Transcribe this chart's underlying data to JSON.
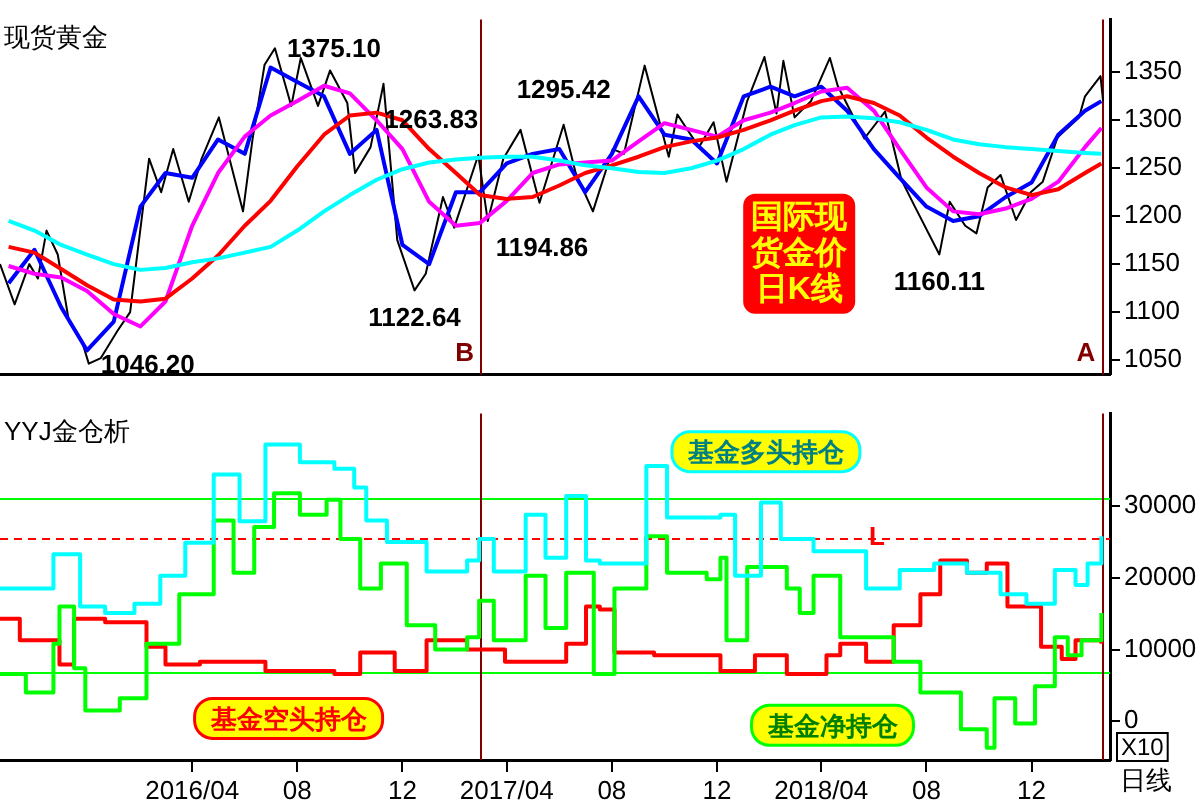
{
  "chart_data": [
    {
      "type": "line",
      "title": "现货黄金",
      "xlim": [
        "2015-08-22",
        "2019-03-02"
      ],
      "ylim": [
        1035,
        1405
      ],
      "yticks": [
        1050,
        1100,
        1150,
        1200,
        1250,
        1300,
        1350
      ],
      "tick_labels": "y",
      "marker": "none",
      "x": [
        "2015-09",
        "2015-10",
        "2015-11",
        "2015-12",
        "2016-01",
        "2016-02",
        "2016-03",
        "2016-04",
        "2016-05",
        "2016-06",
        "2016-07",
        "2016-08",
        "2016-09",
        "2016-10",
        "2016-11",
        "2016-12",
        "2017-01",
        "2017-02",
        "2017-03",
        "2017-04",
        "2017-05",
        "2017-06",
        "2017-07",
        "2017-08",
        "2017-09",
        "2017-10",
        "2017-11",
        "2017-12",
        "2018-01",
        "2018-02",
        "2018-03",
        "2018-04",
        "2018-05",
        "2018-06",
        "2018-07",
        "2018-08",
        "2018-09",
        "2018-10",
        "2018-11",
        "2018-12",
        "2019-01",
        "2019-02",
        "2019-02-20"
      ],
      "series": [
        {
          "color": "#00ffff",
          "values": [
            1195,
            1185,
            1170,
            1160,
            1150,
            1144,
            1146,
            1152,
            1156,
            1162,
            1168,
            1185,
            1205,
            1222,
            1238,
            1249,
            1256,
            1259,
            1261,
            1262,
            1262,
            1258,
            1253,
            1250,
            1246,
            1245,
            1250,
            1258,
            1270,
            1285,
            1295,
            1303,
            1304,
            1302,
            1298,
            1290,
            1280,
            1275,
            1272,
            1270,
            1268,
            1266,
            1265
          ]
        },
        {
          "color": "#ff0000",
          "values": [
            1168,
            1162,
            1145,
            1128,
            1113,
            1111,
            1114,
            1135,
            1159,
            1190,
            1216,
            1252,
            1285,
            1305,
            1308,
            1300,
            1270,
            1245,
            1222,
            1218,
            1220,
            1232,
            1245,
            1253,
            1262,
            1272,
            1278,
            1282,
            1290,
            1300,
            1310,
            1320,
            1325,
            1318,
            1305,
            1282,
            1262,
            1245,
            1230,
            1222,
            1228,
            1245,
            1255
          ]
        },
        {
          "color": "#ff00ff",
          "values": [
            1148,
            1140,
            1136,
            1122,
            1098,
            1085,
            1111,
            1190,
            1245,
            1283,
            1305,
            1320,
            1336,
            1328,
            1300,
            1270,
            1215,
            1190,
            1193,
            1216,
            1245,
            1254,
            1256,
            1258,
            1278,
            1297,
            1290,
            1283,
            1300,
            1308,
            1318,
            1330,
            1334,
            1310,
            1270,
            1230,
            1205,
            1202,
            1208,
            1218,
            1236,
            1272,
            1292
          ]
        },
        {
          "color": "#0000ff",
          "values": [
            1130,
            1165,
            1105,
            1060,
            1090,
            1210,
            1245,
            1240,
            1280,
            1265,
            1355,
            1340,
            1325,
            1265,
            1290,
            1170,
            1150,
            1225,
            1225,
            1255,
            1265,
            1270,
            1225,
            1265,
            1325,
            1285,
            1280,
            1255,
            1325,
            1335,
            1325,
            1335,
            1310,
            1270,
            1240,
            1210,
            1195,
            1200,
            1220,
            1235,
            1285,
            1310,
            1320
          ]
        },
        {
          "color": "#000000",
          "x": [
            "2015-08-22",
            "2015-09-08",
            "2015-09-25",
            "2015-10-05",
            "2015-10-15",
            "2015-10-28",
            "2015-11-10",
            "2015-11-25",
            "2015-12-03",
            "2015-12-17",
            "2016-01-05",
            "2016-01-20",
            "2016-02-11",
            "2016-02-25",
            "2016-03-10",
            "2016-03-28",
            "2016-04-12",
            "2016-05-02",
            "2016-05-30",
            "2016-06-10",
            "2016-06-24",
            "2016-07-06",
            "2016-07-25",
            "2016-08-05",
            "2016-08-25",
            "2016-09-08",
            "2016-09-28",
            "2016-10-07",
            "2016-10-25",
            "2016-11-09",
            "2016-11-25",
            "2016-12-15",
            "2016-12-28",
            "2017-01-17",
            "2017-01-30",
            "2017-02-27",
            "2017-03-10",
            "2017-03-28",
            "2017-04-17",
            "2017-05-09",
            "2017-06-06",
            "2017-06-20",
            "2017-07-10",
            "2017-08-02",
            "2017-08-15",
            "2017-09-08",
            "2017-10-06",
            "2017-10-16",
            "2017-11-10",
            "2017-11-27",
            "2017-12-12",
            "2018-01-05",
            "2018-01-25",
            "2018-02-08",
            "2018-02-16",
            "2018-03-01",
            "2018-03-20",
            "2018-04-11",
            "2018-04-20",
            "2018-05-21",
            "2018-06-14",
            "2018-07-03",
            "2018-07-18",
            "2018-08-16",
            "2018-08-28",
            "2018-09-15",
            "2018-09-28",
            "2018-10-11",
            "2018-10-26",
            "2018-11-13",
            "2018-11-30",
            "2018-12-14",
            "2018-12-31",
            "2019-01-25",
            "2019-02-01",
            "2019-02-19",
            "2019-02-22"
          ],
          "values": [
            1150,
            1108,
            1150,
            1135,
            1185,
            1160,
            1090,
            1070,
            1046.2,
            1052,
            1080,
            1100,
            1260,
            1225,
            1270,
            1215,
            1260,
            1303,
            1205,
            1280,
            1358,
            1375.1,
            1315,
            1365,
            1315,
            1352,
            1318,
            1245,
            1272,
            1338,
            1175,
            1122.64,
            1140,
            1220,
            1188,
            1263.83,
            1194.86,
            1260,
            1290,
            1214,
            1295.42,
            1245,
            1205,
            1270,
            1265,
            1357,
            1262,
            1306,
            1272,
            1298,
            1236,
            1320,
            1366,
            1307,
            1362,
            1303,
            1320,
            1365,
            1336,
            1281,
            1309,
            1238,
            1211,
            1160.11,
            1215,
            1190,
            1182,
            1230,
            1243,
            1196,
            1225,
            1236,
            1282,
            1303,
            1325,
            1346,
            1320
          ]
        }
      ],
      "ref_lines": [
        {
          "axis": "x",
          "value": "2017-03-01",
          "label": "B",
          "color": "#800000"
        },
        {
          "axis": "x",
          "value": "2019-02-20",
          "label": "A",
          "color": "#800000"
        }
      ],
      "annotations": [
        {
          "text": "1046.20",
          "x": "2015-12-03",
          "y": 1046.2
        },
        {
          "text": "1375.10",
          "x": "2016-07-06",
          "y": 1375.1
        },
        {
          "text": "1122.64",
          "x": "2016-12-15",
          "y": 1122.64
        },
        {
          "text": "1263.83",
          "x": "2017-02-27",
          "y": 1263.83
        },
        {
          "text": "1194.86",
          "x": "2017-03-10",
          "y": 1194.86
        },
        {
          "text": "1295.42",
          "x": "2017-06-06",
          "y": 1295.42
        },
        {
          "text": "1160.11",
          "x": "2018-08-16",
          "y": 1160.11
        },
        "国际现货金价日K线"
      ]
    },
    {
      "type": "step",
      "title": "YYJ金仓析",
      "xlim": [
        "2015-08-22",
        "2019-03-02"
      ],
      "xticks": [
        {
          "value": "2016-04",
          "label": "2016/04"
        },
        {
          "value": "2016-08",
          "label": "08"
        },
        {
          "value": "2016-12",
          "label": "12"
        },
        {
          "value": "2017-04",
          "label": "2017/04"
        },
        {
          "value": "2017-08",
          "label": "08"
        },
        {
          "value": "2017-12",
          "label": "12"
        },
        {
          "value": "2018-04",
          "label": "2018/04"
        },
        {
          "value": "2018-08",
          "label": "08"
        },
        {
          "value": "2018-12",
          "label": "12"
        }
      ],
      "ylim": [
        -5400,
        42900
      ],
      "yticks": [
        0,
        10000,
        20000,
        30000
      ],
      "marker": "none",
      "series": [
        {
          "name": "基金多头持仓",
          "color": "#00ffff",
          "x": [
            "2015-08-22",
            "2015-10-23",
            "2015-11-23",
            "2015-12-22",
            "2016-01-25",
            "2016-02-24",
            "2016-03-24",
            "2016-04-26",
            "2016-05-26",
            "2016-06-25",
            "2016-08-04",
            "2016-09-13",
            "2016-10-06",
            "2016-10-20",
            "2016-11-13",
            "2016-12-29",
            "2017-02-14",
            "2017-02-28",
            "2017-03-17",
            "2017-04-23",
            "2017-05-16",
            "2017-06-09",
            "2017-07-02",
            "2017-07-18",
            "2017-09-10",
            "2017-10-04",
            "2017-12-05",
            "2017-12-22",
            "2018-01-21",
            "2018-02-13",
            "2018-03-23",
            "2018-05-23",
            "2018-07-01",
            "2018-08-10",
            "2018-09-17",
            "2018-10-26",
            "2018-11-25",
            "2018-12-28",
            "2019-01-21",
            "2019-02-04",
            "2019-02-20"
          ],
          "values": [
            18500,
            23300,
            16000,
            15100,
            16400,
            20300,
            24900,
            34400,
            27900,
            38600,
            36100,
            35200,
            32600,
            28000,
            25000,
            20900,
            22400,
            25400,
            20900,
            28800,
            22800,
            31400,
            22400,
            22000,
            35600,
            28400,
            28800,
            20300,
            30500,
            25400,
            23700,
            18500,
            21100,
            22000,
            20700,
            17700,
            16400,
            21100,
            19000,
            22000,
            25800
          ]
        },
        {
          "name": "基金净持仓",
          "color": "#00ff00",
          "x": [
            "2015-08-22",
            "2015-09-21",
            "2015-10-23",
            "2015-10-30",
            "2015-11-16",
            "2015-11-29",
            "2016-01-08",
            "2016-02-08",
            "2016-03-17",
            "2016-04-26",
            "2016-05-19",
            "2016-06-12",
            "2016-07-05",
            "2016-08-04",
            "2016-09-04",
            "2016-09-20",
            "2016-10-13",
            "2016-11-06",
            "2016-12-06",
            "2017-01-08",
            "2017-02-14",
            "2017-02-28",
            "2017-03-17",
            "2017-04-23",
            "2017-05-16",
            "2017-06-09",
            "2017-07-11",
            "2017-08-04",
            "2017-09-10",
            "2017-10-04",
            "2017-11-19",
            "2017-12-05",
            "2017-12-12",
            "2018-01-05",
            "2018-02-20",
            "2018-03-07",
            "2018-03-23",
            "2018-04-23",
            "2018-05-23",
            "2018-06-24",
            "2018-07-25",
            "2018-09-10",
            "2018-10-10",
            "2018-10-19",
            "2018-11-12",
            "2018-12-05",
            "2018-12-28",
            "2019-01-12",
            "2019-01-28",
            "2019-02-20"
          ],
          "values": [
            6600,
            4000,
            10800,
            16000,
            7400,
            1500,
            3200,
            10800,
            17700,
            28000,
            20700,
            27100,
            31800,
            28800,
            30900,
            25400,
            18500,
            22000,
            13400,
            10000,
            11700,
            16800,
            11300,
            20300,
            13000,
            20700,
            6600,
            18500,
            25800,
            20700,
            19800,
            22800,
            11300,
            21500,
            18500,
            15100,
            20300,
            11700,
            11700,
            8300,
            4000,
            -1100,
            -3700,
            3200,
            -300,
            4900,
            11700,
            9200,
            11300,
            15100
          ]
        },
        {
          "name": "基金空头持仓",
          "color": "#ff0000",
          "x": [
            "2015-08-22",
            "2015-09-14",
            "2015-10-30",
            "2015-11-16",
            "2015-12-22",
            "2016-02-08",
            "2016-03-01",
            "2016-04-10",
            "2016-06-25",
            "2016-09-13",
            "2016-10-13",
            "2016-11-22",
            "2016-12-29",
            "2017-02-14",
            "2017-03-30",
            "2017-06-09",
            "2017-07-02",
            "2017-07-18",
            "2017-08-04",
            "2017-09-19",
            "2017-12-05",
            "2018-01-14",
            "2018-02-20",
            "2018-04-07",
            "2018-04-23",
            "2018-05-23",
            "2018-06-24",
            "2018-07-25",
            "2018-08-17",
            "2018-09-17",
            "2018-10-10",
            "2018-11-03",
            "2018-11-25",
            "2018-12-12",
            "2019-01-05",
            "2019-01-21",
            "2019-02-20"
          ],
          "values": [
            14300,
            11300,
            7900,
            14300,
            13800,
            10400,
            7900,
            8300,
            7000,
            6600,
            9600,
            7000,
            11300,
            10000,
            8300,
            10800,
            16000,
            15600,
            9600,
            9200,
            7000,
            9200,
            6600,
            9200,
            10800,
            8300,
            13400,
            17700,
            22400,
            20700,
            22000,
            16000,
            16000,
            10400,
            8700,
            11300,
            10800
          ]
        }
      ],
      "ref_lines": [
        {
          "axis": "y",
          "value": 31000,
          "color": "#00ff00"
        },
        {
          "axis": "y",
          "value": 7000,
          "color": "#00ff00"
        },
        {
          "axis": "y",
          "value": 25600,
          "label": "L",
          "color": "#ff0000",
          "line_style": "dashed"
        },
        {
          "axis": "x",
          "value": "2017-03-01",
          "color": "#800000"
        },
        {
          "axis": "x",
          "value": "2019-02-20",
          "color": "#800000"
        }
      ],
      "annotations": [
        "X10",
        "日线"
      ]
    }
  ]
}
